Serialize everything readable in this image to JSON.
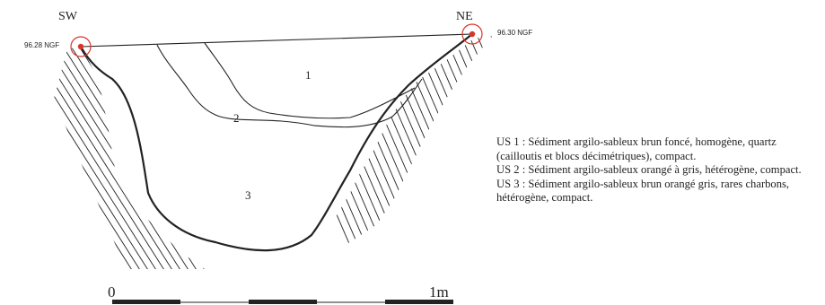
{
  "orientation": {
    "left": "SW",
    "right": "NE"
  },
  "elevations": {
    "left": "96.28 NGF",
    "right": "96.30 NGF"
  },
  "layers": [
    {
      "id": "1"
    },
    {
      "id": "2"
    },
    {
      "id": "3"
    }
  ],
  "legend": [
    "US 1 : Sédiment argilo-sableux brun foncé, homogène, quartz (cailloutis et blocs décimétriques), compact.",
    "US 2 : Sédiment argilo-sableux orangé à gris, hétérogène, compact.",
    "US 3 : Sédiment argilo-sableux brun orangé gris, rares charbons, hétérogène, compact."
  ],
  "scale_bar": {
    "start_label": "0",
    "end_label": "1m"
  },
  "colors": {
    "marker": "#d9362b",
    "line": "#222222"
  }
}
